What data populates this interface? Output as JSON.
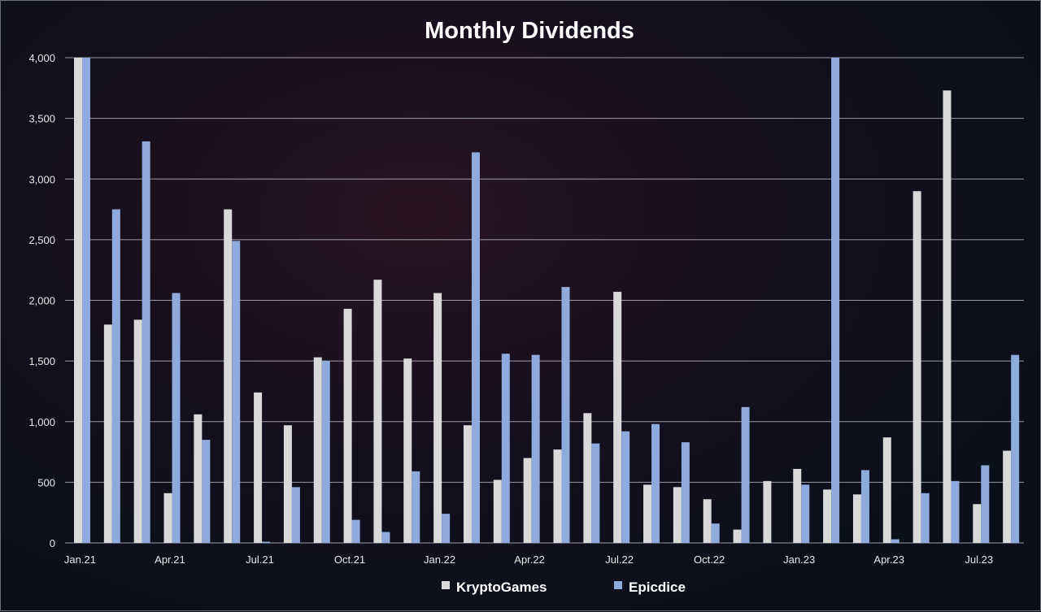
{
  "chart_data": {
    "type": "bar",
    "title": "Monthly Dividends",
    "xlabel": "",
    "ylabel": "",
    "ylim": [
      0,
      4000
    ],
    "yticks": [
      0,
      500,
      1000,
      1500,
      2000,
      2500,
      3000,
      3500,
      4000
    ],
    "ytick_labels": [
      "0",
      "500",
      "1,000",
      "1,500",
      "2,000",
      "2,500",
      "3,000",
      "3,500",
      "4,000"
    ],
    "categories": [
      "Jan.21",
      "Feb.21",
      "Mar.21",
      "Apr.21",
      "May.21",
      "Jun.21",
      "Jul.21",
      "Aug.21",
      "Sep.21",
      "Oct.21",
      "Nov.21",
      "Dec.21",
      "Jan.22",
      "Feb.22",
      "Mar.22",
      "Apr.22",
      "May.22",
      "Jun.22",
      "Jul.22",
      "Aug.22",
      "Sep.22",
      "Oct.22",
      "Nov.22",
      "Dec.22",
      "Jan.23",
      "Feb.23",
      "Mar.23",
      "Apr.23",
      "May.23",
      "Jun.23",
      "Jul.23",
      "Aug.23"
    ],
    "visible_x_labels": [
      "Jan.21",
      "Apr.21",
      "Jul.21",
      "Oct.21",
      "Jan.22",
      "Apr.22",
      "Jul.22",
      "Oct.22",
      "Jan.23",
      "Apr.23",
      "Jul.23"
    ],
    "series": [
      {
        "name": "KryptoGames",
        "color": "#d9d9d9",
        "values": [
          4000,
          1800,
          1840,
          410,
          1060,
          2750,
          1240,
          970,
          1530,
          1930,
          2170,
          1520,
          2060,
          970,
          520,
          700,
          770,
          1070,
          2070,
          480,
          460,
          360,
          110,
          510,
          610,
          440,
          400,
          870,
          2900,
          3730,
          320,
          760
        ]
      },
      {
        "name": "Epicdice",
        "color": "#8faadc",
        "values": [
          4000,
          2750,
          3310,
          2060,
          850,
          2490,
          10,
          460,
          1500,
          190,
          90,
          590,
          240,
          3220,
          1560,
          1550,
          2110,
          820,
          920,
          980,
          830,
          160,
          1120,
          0,
          480,
          4000,
          600,
          30,
          410,
          510,
          640,
          1550
        ]
      }
    ],
    "grid": true,
    "legend": "bottom"
  }
}
